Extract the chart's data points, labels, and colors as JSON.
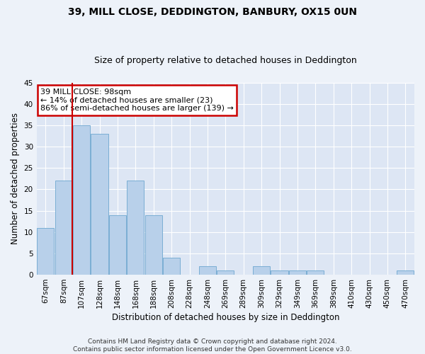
{
  "title": "39, MILL CLOSE, DEDDINGTON, BANBURY, OX15 0UN",
  "subtitle": "Size of property relative to detached houses in Deddington",
  "xlabel": "Distribution of detached houses by size in Deddington",
  "ylabel": "Number of detached properties",
  "categories": [
    "67sqm",
    "87sqm",
    "107sqm",
    "128sqm",
    "148sqm",
    "168sqm",
    "188sqm",
    "208sqm",
    "228sqm",
    "248sqm",
    "269sqm",
    "289sqm",
    "309sqm",
    "329sqm",
    "349sqm",
    "369sqm",
    "389sqm",
    "410sqm",
    "430sqm",
    "450sqm",
    "470sqm"
  ],
  "values": [
    11,
    22,
    35,
    33,
    14,
    22,
    14,
    4,
    0,
    2,
    1,
    0,
    2,
    1,
    1,
    1,
    0,
    0,
    0,
    0,
    1
  ],
  "bar_color": "#b8d0ea",
  "bar_edge_color": "#7aaed4",
  "ylim": [
    0,
    45
  ],
  "yticks": [
    0,
    5,
    10,
    15,
    20,
    25,
    30,
    35,
    40,
    45
  ],
  "vline_x": 1.5,
  "vline_color": "#cc0000",
  "annotation_text": "39 MILL CLOSE: 98sqm\n← 14% of detached houses are smaller (23)\n86% of semi-detached houses are larger (139) →",
  "annotation_box_color": "#ffffff",
  "annotation_box_edge_color": "#cc0000",
  "footer_text": "Contains HM Land Registry data © Crown copyright and database right 2024.\nContains public sector information licensed under the Open Government Licence v3.0.",
  "background_color": "#edf2f9",
  "plot_background_color": "#dde6f4",
  "grid_color": "#ffffff",
  "title_fontsize": 10,
  "subtitle_fontsize": 9,
  "axis_label_fontsize": 8.5,
  "tick_fontsize": 7.5,
  "footer_fontsize": 6.5
}
